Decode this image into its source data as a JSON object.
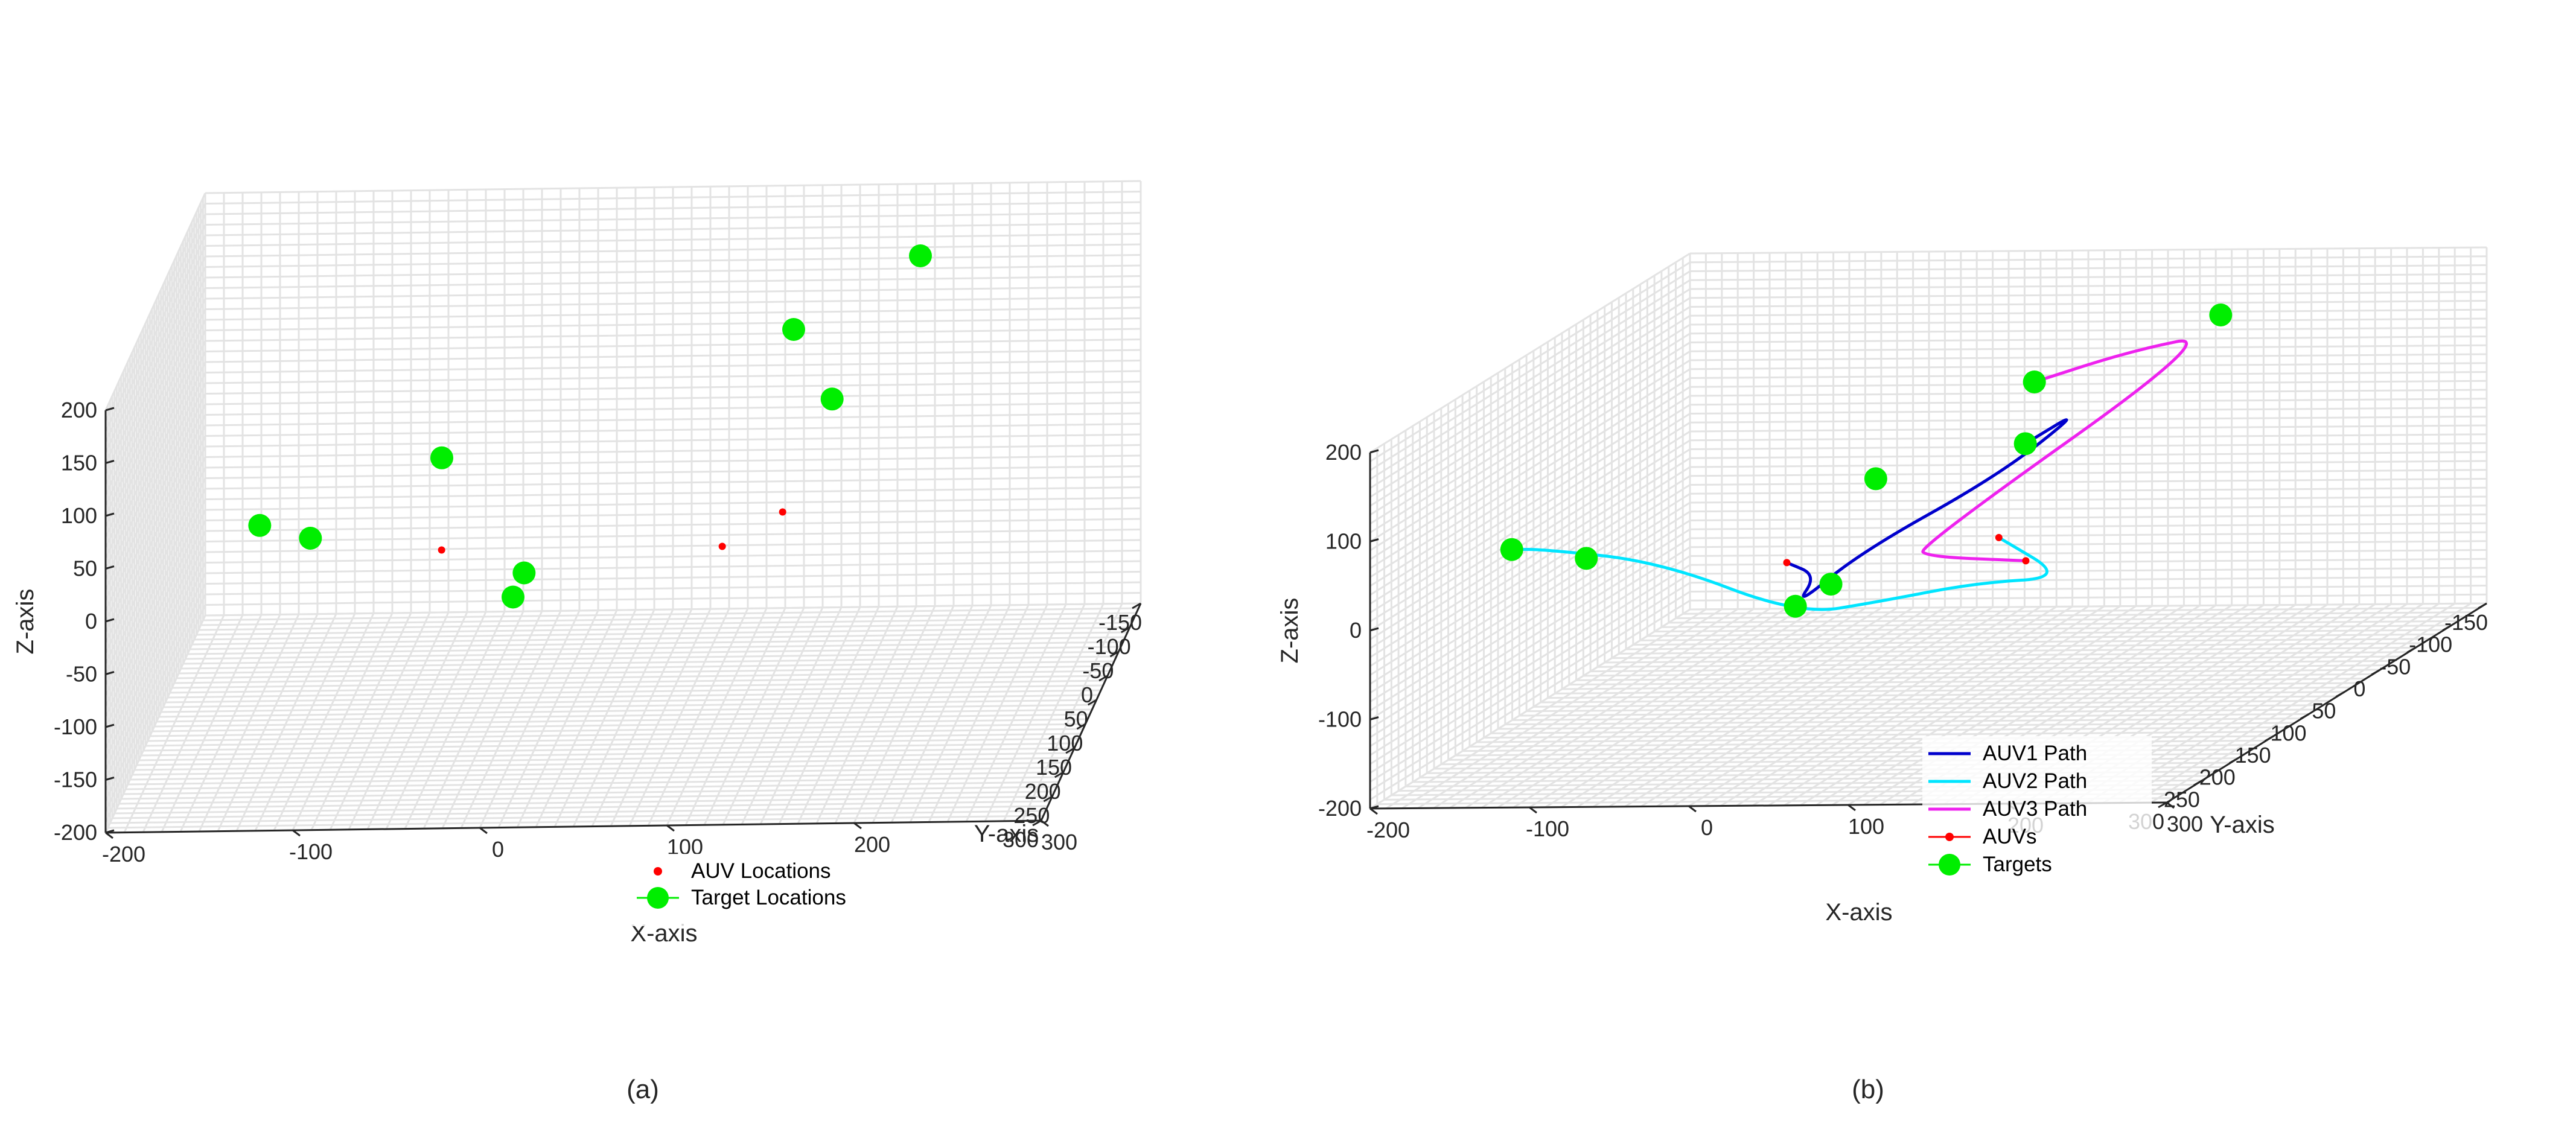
{
  "chart_data": [
    {
      "type": "scatter",
      "caption": "(a)",
      "xlabel": "X-axis",
      "ylabel": "Y-axis",
      "zlabel": "Z-axis",
      "xlim": [
        -200,
        300
      ],
      "ylim": [
        -150,
        300
      ],
      "zlim": [
        -200,
        200
      ],
      "xticks": [
        -200,
        -100,
        0,
        100,
        200,
        300
      ],
      "yticks": [
        -150,
        -100,
        -50,
        0,
        50,
        100,
        150,
        200,
        250,
        300
      ],
      "zticks": [
        -200,
        -150,
        -100,
        -50,
        0,
        50,
        100,
        150,
        200
      ],
      "grid": true,
      "legend_position": "bottom-right",
      "legend": [
        "AUV Locations",
        "Target Locations"
      ],
      "series": [
        {
          "name": "AUV Locations",
          "marker": "small-dot",
          "color": "#ff0000",
          "points": [
            {
              "x": 100,
              "y": 50,
              "z": -50
            },
            {
              "x": 150,
              "y": 200,
              "z": 50
            },
            {
              "x": -50,
              "y": 50,
              "z": -50
            }
          ]
        },
        {
          "name": "Target Locations",
          "marker": "large-dot",
          "color": "#00ee00",
          "points": [
            {
              "x": 180,
              "y": 230,
              "z": 170
            },
            {
              "x": 150,
              "y": 150,
              "z": 200
            },
            {
              "x": 200,
              "y": 0,
              "z": 200
            },
            {
              "x": -120,
              "y": 280,
              "z": 80
            },
            {
              "x": -100,
              "y": 220,
              "z": 40
            },
            {
              "x": 0,
              "y": 150,
              "z": -50
            },
            {
              "x": 0,
              "y": 100,
              "z": -50
            },
            {
              "x": -70,
              "y": -120,
              "z": -40
            }
          ]
        }
      ]
    },
    {
      "type": "line",
      "caption": "(b)",
      "xlabel": "X-axis",
      "ylabel": "Y-axis",
      "zlabel": "Z-axis",
      "xlim": [
        -200,
        300
      ],
      "ylim": [
        -150,
        300
      ],
      "zlim": [
        -200,
        200
      ],
      "xticks": [
        -200,
        -100,
        0,
        100,
        200,
        300
      ],
      "yticks": [
        -150,
        -100,
        -50,
        0,
        50,
        100,
        150,
        200,
        250,
        300
      ],
      "zticks": [
        -200,
        -100,
        0,
        100,
        200
      ],
      "grid": true,
      "legend_position": "bottom-center",
      "legend": [
        "AUV1 Path",
        "AUV2 Path",
        "AUV3 Path",
        "AUVs",
        "Targets"
      ],
      "series": [
        {
          "name": "AUV1 Path",
          "color": "#0000cc",
          "points": [
            {
              "x": -50,
              "y": 50,
              "z": -50
            },
            {
              "x": 0,
              "y": 120,
              "z": -30
            },
            {
              "x": 0,
              "y": 150,
              "z": -50
            },
            {
              "x": 50,
              "y": 170,
              "z": 20
            },
            {
              "x": 150,
              "y": 200,
              "z": 120
            },
            {
              "x": 190,
              "y": 170,
              "z": 180
            },
            {
              "x": 180,
              "y": 230,
              "z": 170
            }
          ]
        },
        {
          "name": "AUV2 Path",
          "color": "#00e5ff",
          "points": [
            {
              "x": 150,
              "y": 200,
              "z": 50
            },
            {
              "x": 170,
              "y": 150,
              "z": -20
            },
            {
              "x": 100,
              "y": 120,
              "z": -40
            },
            {
              "x": 40,
              "y": 120,
              "z": -60
            },
            {
              "x": 20,
              "y": 190,
              "z": -40
            },
            {
              "x": -40,
              "y": 250,
              "z": 50
            },
            {
              "x": -100,
              "y": 280,
              "z": 80
            },
            {
              "x": -120,
              "y": 280,
              "z": 80
            }
          ]
        },
        {
          "name": "AUV3 Path",
          "color": "#ee22ee",
          "points": [
            {
              "x": 100,
              "y": 50,
              "z": -50
            },
            {
              "x": 60,
              "y": 100,
              "z": -20
            },
            {
              "x": 100,
              "y": 200,
              "z": 40
            },
            {
              "x": 200,
              "y": 0,
              "z": 180
            },
            {
              "x": 180,
              "y": 80,
              "z": 200
            },
            {
              "x": 150,
              "y": 150,
              "z": 200
            }
          ]
        },
        {
          "name": "AUVs",
          "marker": "small-dot",
          "color": "#ff0000",
          "points": [
            {
              "x": 100,
              "y": 50,
              "z": -50
            },
            {
              "x": 150,
              "y": 200,
              "z": 50
            },
            {
              "x": -50,
              "y": 50,
              "z": -50
            }
          ]
        },
        {
          "name": "Targets",
          "marker": "large-dot",
          "color": "#00ee00",
          "points": [
            {
              "x": 180,
              "y": 230,
              "z": 170
            },
            {
              "x": 150,
              "y": 150,
              "z": 200
            },
            {
              "x": 200,
              "y": 0,
              "z": 200
            },
            {
              "x": -120,
              "y": 280,
              "z": 80
            },
            {
              "x": -100,
              "y": 220,
              "z": 40
            },
            {
              "x": 0,
              "y": 150,
              "z": -50
            },
            {
              "x": 0,
              "y": 100,
              "z": -50
            },
            {
              "x": -70,
              "y": -120,
              "z": -40
            }
          ]
        }
      ]
    }
  ]
}
